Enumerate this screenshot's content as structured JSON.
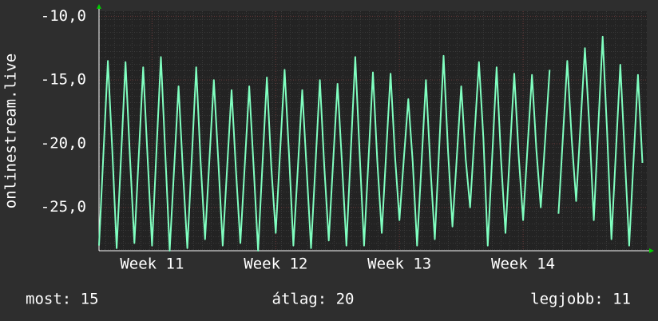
{
  "chart_data": {
    "type": "line",
    "y_axis_label": "onlinestream.live",
    "footer": [
      "most: 15",
      "átlag: 20",
      "legjobb: 11"
    ],
    "xlim": [
      0,
      31
    ],
    "xticks": [
      {
        "value": 3,
        "label": "Week 11"
      },
      {
        "value": 10,
        "label": "Week 12"
      },
      {
        "value": 17,
        "label": "Week 13"
      },
      {
        "value": 24,
        "label": "Week 14"
      }
    ],
    "ylim": [
      -28.4,
      -9.6
    ],
    "yticks": [
      {
        "value": -10,
        "label": "-10,0"
      },
      {
        "value": -15,
        "label": "-15,0"
      },
      {
        "value": -20,
        "label": "-20,0"
      },
      {
        "value": -25,
        "label": "-25,0"
      }
    ],
    "grid": true,
    "x": [
      0,
      0.25,
      0.5,
      0.75,
      1,
      1.25,
      1.5,
      1.75,
      2,
      2.25,
      2.5,
      2.75,
      3,
      3.25,
      3.5,
      3.75,
      4,
      4.25,
      4.5,
      4.75,
      5,
      5.25,
      5.5,
      5.75,
      6,
      6.25,
      6.5,
      6.75,
      7,
      7.25,
      7.5,
      7.75,
      8,
      8.25,
      8.5,
      8.75,
      9,
      9.25,
      9.5,
      9.75,
      10,
      10.25,
      10.5,
      10.75,
      11,
      11.25,
      11.5,
      11.75,
      12,
      12.25,
      12.5,
      12.75,
      13,
      13.25,
      13.5,
      13.75,
      14,
      14.25,
      14.5,
      14.75,
      15,
      15.25,
      15.5,
      15.75,
      16,
      16.25,
      16.5,
      16.75,
      17,
      17.25,
      17.5,
      17.75,
      18,
      18.25,
      18.5,
      18.75,
      19,
      19.25,
      19.5,
      19.75,
      20,
      20.25,
      20.5,
      20.75,
      21,
      21.25,
      21.5,
      21.75,
      22,
      22.25,
      22.5,
      22.75,
      23,
      23.25,
      23.5,
      23.75,
      24,
      24.25,
      24.5,
      24.75,
      25,
      25.25,
      25.5,
      25.75,
      26,
      26.25,
      26.5,
      26.75,
      27,
      27.25,
      27.5,
      27.75,
      28,
      28.25,
      28.5,
      28.75,
      29,
      29.25,
      29.5,
      29.75,
      30,
      30.25,
      30.5,
      30.75
    ],
    "series": [
      {
        "name": "onlinestream.live",
        "color": "#80ffc0",
        "values": [
          -28,
          -20.8,
          -13.5,
          -20.5,
          -28.2,
          -20.9,
          -13.6,
          -21,
          -27.8,
          -20.9,
          -14,
          -21.2,
          -28,
          -20.6,
          -13.2,
          -20.8,
          -28.4,
          -22,
          -15.5,
          -22.2,
          -28.2,
          -21.1,
          -14,
          -21.4,
          -27.5,
          -21.2,
          -15,
          -21.4,
          -28,
          -21.9,
          -15.8,
          -22.1,
          -27.8,
          -21.6,
          -15.5,
          -21.8,
          -28.4,
          -21.6,
          -14.8,
          -21.9,
          -27,
          -20.6,
          -14.2,
          -20.8,
          -28,
          -21.9,
          -15.8,
          -22,
          -28.2,
          -21.6,
          -15,
          -21.8,
          -27.6,
          -21.4,
          -15.3,
          -21.6,
          -28,
          -20.6,
          -13.2,
          -20.8,
          -28,
          -21.2,
          -14.4,
          -21.4,
          -27,
          -20.7,
          -14.5,
          -21,
          -26,
          -21.2,
          -16.5,
          -21.4,
          -28,
          -21.5,
          -15,
          -21.7,
          -27.5,
          -20.3,
          -13.1,
          -20.5,
          -26.5,
          -21,
          -15.5,
          -21.2,
          -25,
          -19.3,
          -13.6,
          -19.5,
          -28,
          -21,
          -14,
          -21.2,
          -27,
          -20.7,
          -14.5,
          -21,
          -26,
          -20.3,
          -14.6,
          -20.5,
          -25,
          -19.6,
          -14.2,
          null,
          -25.5,
          -19.5,
          -13.5,
          -19.7,
          -24.5,
          -18.5,
          -12.5,
          -18.7,
          -26,
          -18.8,
          -11.6,
          -19,
          -27.5,
          -20.6,
          -13.8,
          -20.8,
          -28,
          -21.3,
          -14.6,
          -21.5
        ]
      }
    ]
  }
}
